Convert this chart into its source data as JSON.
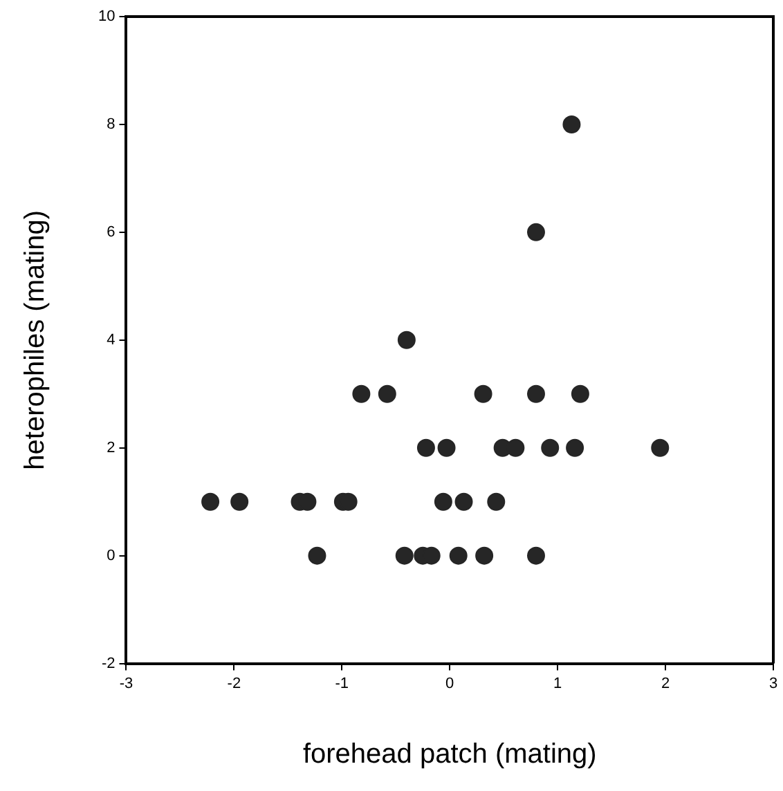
{
  "chart_data": {
    "type": "scatter",
    "xlabel": "forehead patch (mating)",
    "ylabel": "heterophiles (mating)",
    "xlim": [
      -3,
      3
    ],
    "xticks": [
      -3,
      -2,
      -1,
      0,
      1,
      2,
      3
    ],
    "ylim": [
      -2,
      10
    ],
    "yticks": [
      -2,
      0,
      2,
      4,
      6,
      8,
      10
    ],
    "grid": false,
    "legend": false,
    "marker": "circle",
    "series": [
      {
        "color": "#262626",
        "x": [
          1.13,
          0.8,
          -0.4,
          -0.82,
          -0.58,
          0.31,
          0.8,
          1.21,
          -0.22,
          -0.03,
          0.49,
          0.61,
          0.93,
          1.16,
          1.95,
          -2.22,
          -1.95,
          -1.39,
          -1.32,
          -0.99,
          -0.94,
          -0.06,
          0.13,
          0.43,
          -1.23,
          -0.42,
          -0.25,
          -0.17,
          0.08,
          0.32,
          0.8
        ],
        "values": [
          8,
          6,
          4,
          3,
          3,
          3,
          3,
          3,
          2,
          2,
          2,
          2,
          2,
          2,
          2,
          1,
          1,
          1,
          1,
          1,
          1,
          1,
          1,
          1,
          0,
          0,
          0,
          0,
          0,
          0,
          0
        ]
      }
    ]
  }
}
